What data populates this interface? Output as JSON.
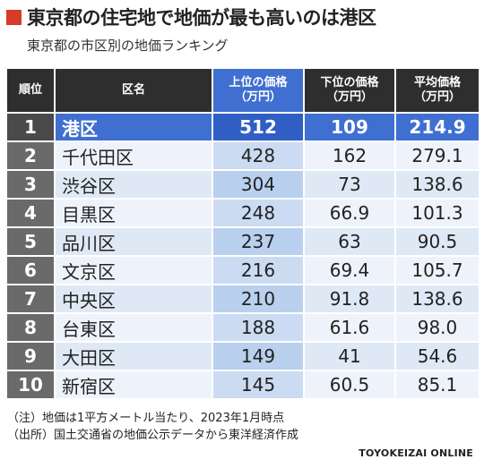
{
  "title": "東京都の住宅地で地価が最も高いのは港区",
  "subtitle": "東京都の市区別の地価ランキング",
  "accent_color": "#d63a2a",
  "highlight_color": "#3f6fd0",
  "chart_data": {
    "type": "table",
    "columns": [
      {
        "label": "順位"
      },
      {
        "label": "区名"
      },
      {
        "label": "上位の価格",
        "unit": "（万円）"
      },
      {
        "label": "下位の価格",
        "unit": "（万円）"
      },
      {
        "label": "平均価格",
        "unit": "（万円）"
      }
    ],
    "rows": [
      {
        "rank": "1",
        "name": "港区",
        "upper": "512",
        "lower": "109",
        "avg": "214.9"
      },
      {
        "rank": "2",
        "name": "千代田区",
        "upper": "428",
        "lower": "162",
        "avg": "279.1"
      },
      {
        "rank": "3",
        "name": "渋谷区",
        "upper": "304",
        "lower": "73",
        "avg": "138.6"
      },
      {
        "rank": "4",
        "name": "目黒区",
        "upper": "248",
        "lower": "66.9",
        "avg": "101.3"
      },
      {
        "rank": "5",
        "name": "品川区",
        "upper": "237",
        "lower": "63",
        "avg": "90.5"
      },
      {
        "rank": "6",
        "name": "文京区",
        "upper": "216",
        "lower": "69.4",
        "avg": "105.7"
      },
      {
        "rank": "7",
        "name": "中央区",
        "upper": "210",
        "lower": "91.8",
        "avg": "138.6"
      },
      {
        "rank": "8",
        "name": "台東区",
        "upper": "188",
        "lower": "61.6",
        "avg": "98.0"
      },
      {
        "rank": "9",
        "name": "大田区",
        "upper": "149",
        "lower": "41",
        "avg": "54.6"
      },
      {
        "rank": "10",
        "name": "新宿区",
        "upper": "145",
        "lower": "60.5",
        "avg": "85.1"
      }
    ]
  },
  "notes": {
    "note": "（注）地価は1平方メートル当たり、2023年1月時点",
    "source": "（出所）国土交通省の地価公示データから東洋経済作成"
  },
  "credit": "TOYOKEIZAI ONLINE"
}
